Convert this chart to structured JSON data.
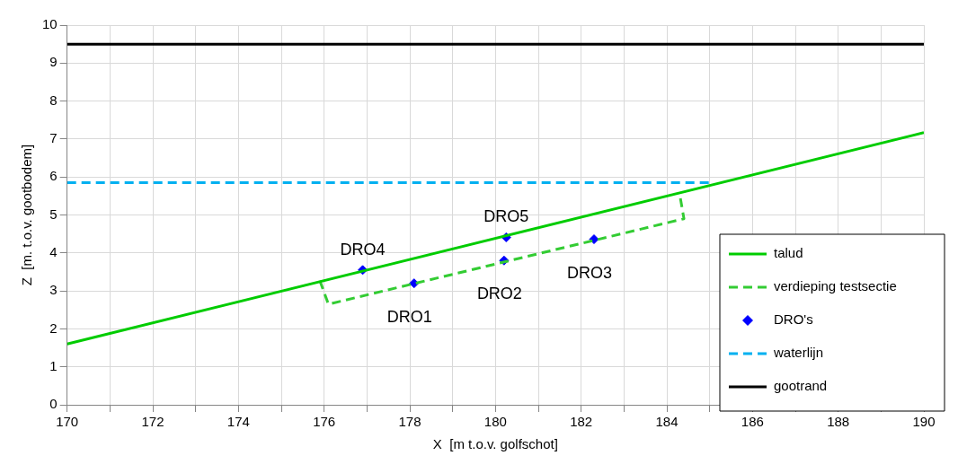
{
  "chart_data": {
    "type": "line",
    "xlabel": "X  [m t.o.v. golfschot]",
    "ylabel": "Z  [m. t.o.v. gootbodem]",
    "xlim": [
      170,
      190
    ],
    "xticks": [
      170,
      {
        "value": 171,
        "label": null
      },
      172,
      {
        "value": 173,
        "label": null
      },
      174,
      {
        "value": 175,
        "label": null
      },
      176,
      {
        "value": 177,
        "label": null
      },
      178,
      {
        "value": 179,
        "label": null
      },
      180,
      {
        "value": 181,
        "label": null
      },
      182,
      {
        "value": 183,
        "label": null
      },
      184,
      {
        "value": 185,
        "label": null
      },
      186,
      {
        "value": 187,
        "label": null
      },
      188,
      {
        "value": 189,
        "label": null
      },
      190
    ],
    "ylim": [
      0,
      10
    ],
    "yticks": [
      0,
      1,
      2,
      3,
      4,
      5,
      6,
      7,
      8,
      9,
      10
    ],
    "grid": true,
    "legend": "bottom right",
    "series": [
      {
        "name": "talud",
        "type": "line",
        "color": "#00cc00",
        "line_style": "solid",
        "marker": "none",
        "x": [
          170,
          190
        ],
        "values": [
          1.6,
          7.17
        ]
      },
      {
        "name": "verdieping testsectie",
        "type": "line",
        "color": "#33cc33",
        "line_style": "dashed",
        "marker": "none",
        "x": [
          175.9,
          176.1,
          184.4,
          184.3
        ],
        "values": [
          3.27,
          2.65,
          4.9,
          5.55
        ]
      },
      {
        "name": "DRO's",
        "type": "scatter",
        "color": "#0000ff",
        "marker": "diamond",
        "x": [
          178.1,
          180.2,
          182.3,
          176.9,
          180.25
        ],
        "values": [
          3.2,
          3.8,
          4.36,
          3.55,
          4.41
        ]
      },
      {
        "name": "waterlijn",
        "type": "line",
        "color": "#00b0f0",
        "line_style": "dashed",
        "marker": "none",
        "x": [
          170,
          185.0
        ],
        "values": [
          5.85,
          5.85
        ]
      },
      {
        "name": "gootrand",
        "type": "line",
        "color": "#000000",
        "line_style": "solid",
        "marker": "none",
        "x": [
          170,
          190
        ],
        "values": [
          9.5,
          9.5
        ]
      }
    ],
    "annotations": [
      {
        "text": "DRO1",
        "x": 178.1,
        "y": 3.2
      },
      {
        "text": "DRO2",
        "x": 180.2,
        "y": 3.8
      },
      {
        "text": "DRO3",
        "x": 182.3,
        "y": 4.36
      },
      {
        "text": "DRO4",
        "x": 176.9,
        "y": 3.55
      },
      {
        "text": "DRO5",
        "x": 180.25,
        "y": 4.41
      }
    ]
  }
}
